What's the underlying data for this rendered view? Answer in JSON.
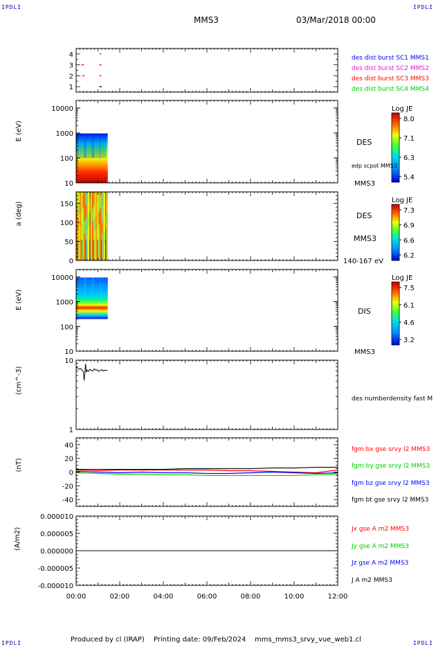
{
  "corners": {
    "tl": "IPDLI",
    "tr": "IPDLI",
    "bl": "IPDLI",
    "br": "IPDLI"
  },
  "header": {
    "spacecraft": "MMS3",
    "date": "03/Mar/2018 00:00"
  },
  "footer": {
    "produced": "Produced by cl (IRAP)",
    "printing": "Printing date: 09/Feb/2024",
    "file": "mms_mms3_srvy_vue_web1.cl"
  },
  "colors": {
    "red": "#ff0000",
    "green": "#00cc00",
    "blue": "#0000ff",
    "magenta": "#ff00ff",
    "black": "#000000"
  },
  "chart_data": [
    {
      "type": "scatter",
      "panel": "availability",
      "yticks": [
        "1",
        "2",
        "3",
        "4"
      ],
      "ylim": [
        0.5,
        4.5
      ],
      "legend": [
        {
          "label": "des dist burst SC1 MMS1",
          "color": "#0000ff"
        },
        {
          "label": "des dist burst SC2 MMS2",
          "color": "#ff00ff"
        },
        {
          "label": "des dist burst SC3 MMS3",
          "color": "#ff0000"
        },
        {
          "label": "des dist burst SC4 MMS4",
          "color": "#00cc00"
        }
      ],
      "marks": [
        {
          "x": "01:07",
          "y": 4,
          "color": "#00cc00"
        },
        {
          "x": "00:18",
          "y": 3,
          "color": "#ff0000"
        },
        {
          "x": "01:07",
          "y": 3,
          "color": "#ff0000"
        },
        {
          "x": "00:20",
          "y": 2,
          "color": "#ff00ff"
        },
        {
          "x": "01:07",
          "y": 2,
          "color": "#ff00ff"
        },
        {
          "x": "01:07",
          "y": 1,
          "color": "#000000"
        }
      ]
    },
    {
      "type": "heatmap",
      "panel": "des-energy",
      "ylabel": "E (eV)",
      "yscale": "log",
      "ylim": [
        10,
        20000
      ],
      "yticks": [
        "10",
        "100",
        "1000",
        "10000"
      ],
      "data_x_range": [
        "00:00",
        "01:27"
      ],
      "data_y_range": [
        10,
        950
      ],
      "side_labels": [
        "DES",
        "edp scpot MMS3",
        "MMS3"
      ],
      "colorbar": {
        "title": "Log JE",
        "ticks": [
          "8.0",
          "7.1",
          "6.3",
          "5.4"
        ]
      }
    },
    {
      "type": "heatmap",
      "panel": "des-pitch",
      "ylabel": "a (deg)",
      "ylim": [
        0,
        180
      ],
      "yticks": [
        "0",
        "50",
        "100",
        "150"
      ],
      "data_x_range": [
        "00:00",
        "01:27"
      ],
      "side_labels": [
        "DES",
        "MMS3",
        "140-167 eV"
      ],
      "colorbar": {
        "title": "Log JE",
        "ticks": [
          "7.3",
          "6.9",
          "6.6",
          "6.2"
        ]
      }
    },
    {
      "type": "heatmap",
      "panel": "dis-energy",
      "ylabel": "E (eV)",
      "yscale": "log",
      "ylim": [
        10,
        20000
      ],
      "yticks": [
        "10",
        "100",
        "1000",
        "10000"
      ],
      "data_x_range": [
        "00:00",
        "01:27"
      ],
      "data_y_range": [
        200,
        9500
      ],
      "side_labels": [
        "DIS",
        "MMS3"
      ],
      "colorbar": {
        "title": "Log JE",
        "ticks": [
          "7.5",
          "6.1",
          "4.6",
          "3.2"
        ]
      }
    },
    {
      "type": "line",
      "panel": "density",
      "ylabel": "(cm^-3)",
      "yscale": "log",
      "ylim": [
        1,
        10
      ],
      "yticks": [
        "1",
        "10"
      ],
      "series": [
        {
          "name": "des numberdensity fast M",
          "color": "#000000",
          "x": [
            "00:00",
            "00:04",
            "00:08",
            "00:12",
            "00:16",
            "00:20",
            "00:22",
            "00:24",
            "00:26",
            "00:28",
            "00:30",
            "00:34",
            "00:38",
            "00:42",
            "00:46",
            "00:50",
            "00:54",
            "00:58",
            "01:02",
            "01:06",
            "01:10",
            "01:14",
            "01:18",
            "01:22",
            "01:26"
          ],
          "y": [
            7.9,
            7.7,
            7.4,
            7.6,
            7.2,
            6.8,
            5.1,
            6.4,
            8.9,
            6.7,
            7.2,
            6.9,
            7.4,
            7.1,
            7.0,
            7.5,
            7.2,
            7.3,
            6.9,
            7.1,
            7.3,
            7.0,
            7.2,
            7.1,
            7.2
          ]
        }
      ]
    },
    {
      "type": "line",
      "panel": "fgm",
      "ylabel": "(nT)",
      "ylim": [
        -50,
        50
      ],
      "yticks": [
        "-40",
        "-20",
        "0",
        "20",
        "40"
      ],
      "series": [
        {
          "name": "fgm bx gse srvy l2 MMS3",
          "color": "#ff0000",
          "x": [
            "00:00",
            "01:00",
            "02:00",
            "03:00",
            "04:00",
            "05:00",
            "06:00",
            "07:00",
            "08:00",
            "09:00",
            "10:00",
            "11:00",
            "12:00"
          ],
          "y": [
            3,
            2,
            3,
            3,
            3,
            3,
            3,
            2,
            2,
            1,
            0,
            -1,
            3
          ]
        },
        {
          "name": "fgm by gse srvy l2 MMS3",
          "color": "#00cc00",
          "x": [
            "00:00",
            "01:00",
            "02:00",
            "03:00",
            "04:00",
            "05:00",
            "06:00",
            "07:00",
            "08:00",
            "09:00",
            "10:00",
            "11:00",
            "12:00"
          ],
          "y": [
            -1,
            -2,
            -3,
            -3,
            -4,
            -4,
            -5,
            -5,
            -5,
            -5,
            -5,
            -4,
            -3
          ]
        },
        {
          "name": "fgm bz gse srvy l2 MMS3",
          "color": "#0000ff",
          "x": [
            "00:00",
            "01:00",
            "02:00",
            "03:00",
            "04:00",
            "05:00",
            "06:00",
            "07:00",
            "08:00",
            "09:00",
            "10:00",
            "11:00",
            "12:00"
          ],
          "y": [
            1,
            0,
            -1,
            0,
            -1,
            -1,
            -2,
            -2,
            -1,
            0,
            -1,
            -2,
            -1
          ]
        },
        {
          "name": "fgm bt gse srvy l2 MMS3",
          "color": "#000000",
          "x": [
            "00:00",
            "01:00",
            "02:00",
            "03:00",
            "04:00",
            "05:00",
            "06:00",
            "07:00",
            "08:00",
            "09:00",
            "10:00",
            "11:00",
            "12:00"
          ],
          "y": [
            4,
            4,
            4,
            4,
            4,
            5,
            5,
            5,
            5,
            6,
            6,
            7,
            7
          ]
        }
      ]
    },
    {
      "type": "line",
      "panel": "current",
      "ylabel": "(A/m2)",
      "ylim": [
        -1e-05,
        1e-05
      ],
      "yticks": [
        "-0.000010",
        "-0.000005",
        "0.000000",
        "0.000005",
        "0.000010"
      ],
      "xticks": [
        "00:00",
        "02:00",
        "04:00",
        "06:00",
        "08:00",
        "10:00",
        "12:00"
      ],
      "series": [
        {
          "name": "Jx gse A m2 MMS3",
          "color": "#ff0000",
          "x": [
            "00:00",
            "12:00"
          ],
          "y": [
            0,
            0
          ]
        },
        {
          "name": "Jy gse A m2 MMS3",
          "color": "#00cc00",
          "x": [
            "00:00",
            "12:00"
          ],
          "y": [
            0,
            0
          ]
        },
        {
          "name": "Jz gse A m2 MMS3",
          "color": "#0000ff",
          "x": [
            "00:00",
            "12:00"
          ],
          "y": [
            0,
            0
          ]
        },
        {
          "name": "J A m2 MMS3",
          "color": "#000000",
          "x": [
            "00:00",
            "12:00"
          ],
          "y": [
            0,
            0
          ]
        }
      ]
    }
  ]
}
